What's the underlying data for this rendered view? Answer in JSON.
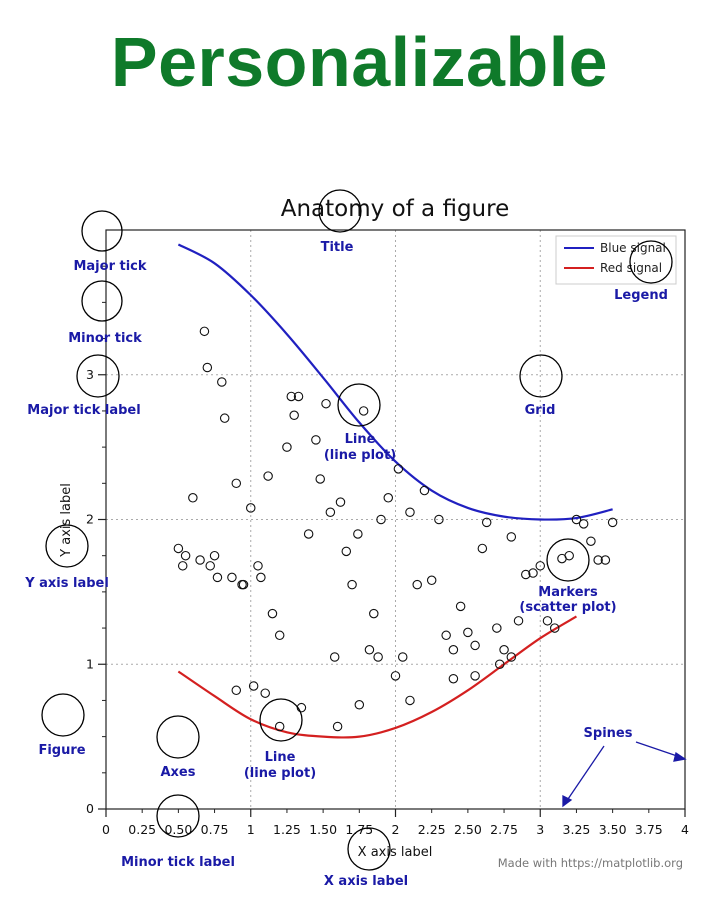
{
  "heading": "Personalizable",
  "colors": {
    "heading": "#0f7a2a",
    "annotation": "#1a1aa6",
    "blue_signal": "#2020c0",
    "red_signal": "#d42020"
  },
  "chart_data": {
    "type": "line",
    "title": "Anatomy of a figure",
    "xlabel": "X axis label",
    "ylabel": "Y axis label",
    "xlim": [
      0,
      4
    ],
    "ylim": [
      0,
      4
    ],
    "grid": true,
    "legend_position": "top-right",
    "x_major_ticks": [
      0,
      1,
      2,
      3,
      4
    ],
    "x_minor_labels": [
      "0.25",
      "0.50",
      "0.75",
      "1.25",
      "1.50",
      "1.75",
      "2.25",
      "2.50",
      "2.75",
      "3.25",
      "3.50",
      "3.75"
    ],
    "x_minor_ticks": [
      0.25,
      0.5,
      0.75,
      1.25,
      1.5,
      1.75,
      2.25,
      2.5,
      2.75,
      3.25,
      3.5,
      3.75
    ],
    "y_major_ticks": [
      0,
      1,
      2,
      3
    ],
    "series": [
      {
        "name": "Blue signal",
        "color": "#2020c0",
        "x": [
          0.5,
          0.75,
          1.0,
          1.25,
          1.5,
          1.75,
          2.0,
          2.25,
          2.5,
          2.75,
          3.0,
          3.25,
          3.5
        ],
        "y": [
          3.9,
          3.77,
          3.55,
          3.28,
          2.98,
          2.67,
          2.4,
          2.2,
          2.08,
          2.02,
          2.0,
          2.01,
          2.07
        ]
      },
      {
        "name": "Red signal",
        "color": "#d42020",
        "x": [
          0.5,
          0.75,
          1.0,
          1.25,
          1.5,
          1.75,
          2.0,
          2.25,
          2.5,
          2.75,
          3.0,
          3.25
        ],
        "y": [
          0.95,
          0.78,
          0.62,
          0.53,
          0.5,
          0.5,
          0.56,
          0.67,
          0.82,
          1.0,
          1.18,
          1.33
        ]
      }
    ],
    "markers": {
      "x": [
        0.6,
        0.68,
        0.7,
        0.8,
        0.82,
        0.75,
        0.9,
        0.95,
        1.0,
        0.5,
        0.53,
        0.55,
        0.65,
        0.72,
        0.77,
        0.87,
        0.94,
        1.05,
        1.07,
        1.12,
        1.15,
        1.2,
        1.25,
        1.28,
        1.3,
        1.33,
        1.4,
        1.45,
        1.48,
        1.52,
        1.55,
        1.58,
        1.62,
        1.66,
        1.7,
        1.74,
        1.78,
        1.82,
        1.85,
        1.9,
        1.95,
        2.0,
        2.02,
        2.05,
        2.1,
        2.15,
        2.2,
        2.25,
        2.3,
        2.35,
        2.4,
        2.45,
        2.5,
        2.55,
        2.6,
        2.63,
        2.7,
        2.72,
        2.75,
        2.8,
        2.85,
        2.9,
        2.95,
        3.0,
        3.05,
        3.1,
        3.15,
        3.2,
        3.25,
        3.3,
        3.35,
        3.4,
        3.45,
        3.5,
        1.1,
        1.2,
        1.35,
        1.6,
        1.75,
        1.88,
        2.1,
        2.4,
        2.55,
        2.8,
        0.9,
        1.02
      ],
      "y": [
        2.15,
        3.3,
        3.05,
        2.95,
        2.7,
        1.75,
        2.25,
        1.55,
        2.08,
        1.8,
        1.68,
        1.75,
        1.72,
        1.68,
        1.6,
        1.6,
        1.55,
        1.68,
        1.6,
        2.3,
        1.35,
        1.2,
        2.5,
        2.85,
        2.72,
        2.85,
        1.9,
        2.55,
        2.28,
        2.8,
        2.05,
        1.05,
        2.12,
        1.78,
        1.55,
        1.9,
        2.75,
        1.1,
        1.35,
        2.0,
        2.15,
        0.92,
        2.35,
        1.05,
        2.05,
        1.55,
        2.2,
        1.58,
        2.0,
        1.2,
        1.1,
        1.4,
        1.22,
        1.13,
        1.8,
        1.98,
        1.25,
        1.0,
        1.1,
        1.88,
        1.3,
        1.62,
        1.63,
        1.68,
        1.3,
        1.25,
        1.73,
        1.75,
        2.0,
        1.97,
        1.85,
        1.72,
        1.72,
        1.98,
        0.8,
        0.57,
        0.7,
        0.57,
        0.72,
        1.05,
        0.75,
        0.9,
        0.92,
        1.05,
        0.82,
        0.85
      ]
    }
  },
  "annotations": {
    "major_tick": "Major tick",
    "minor_tick": "Minor tick",
    "major_tick_label": "Major tick label",
    "y_axis_label": "Y axis label",
    "figure": "Figure",
    "axes": "Axes",
    "minor_tick_label": "Minor tick label",
    "x_axis_label": "X axis label",
    "line_plot_top": "Line",
    "line_plot_top_sub": "(line plot)",
    "line_plot_bottom": "Line",
    "line_plot_bottom_sub": "(line plot)",
    "title": "Title",
    "grid": "Grid",
    "legend": "Legend",
    "markers": "Markers",
    "markers_sub": "(scatter plot)",
    "spines": "Spines"
  },
  "credit": "Made with https://matplotlib.org"
}
